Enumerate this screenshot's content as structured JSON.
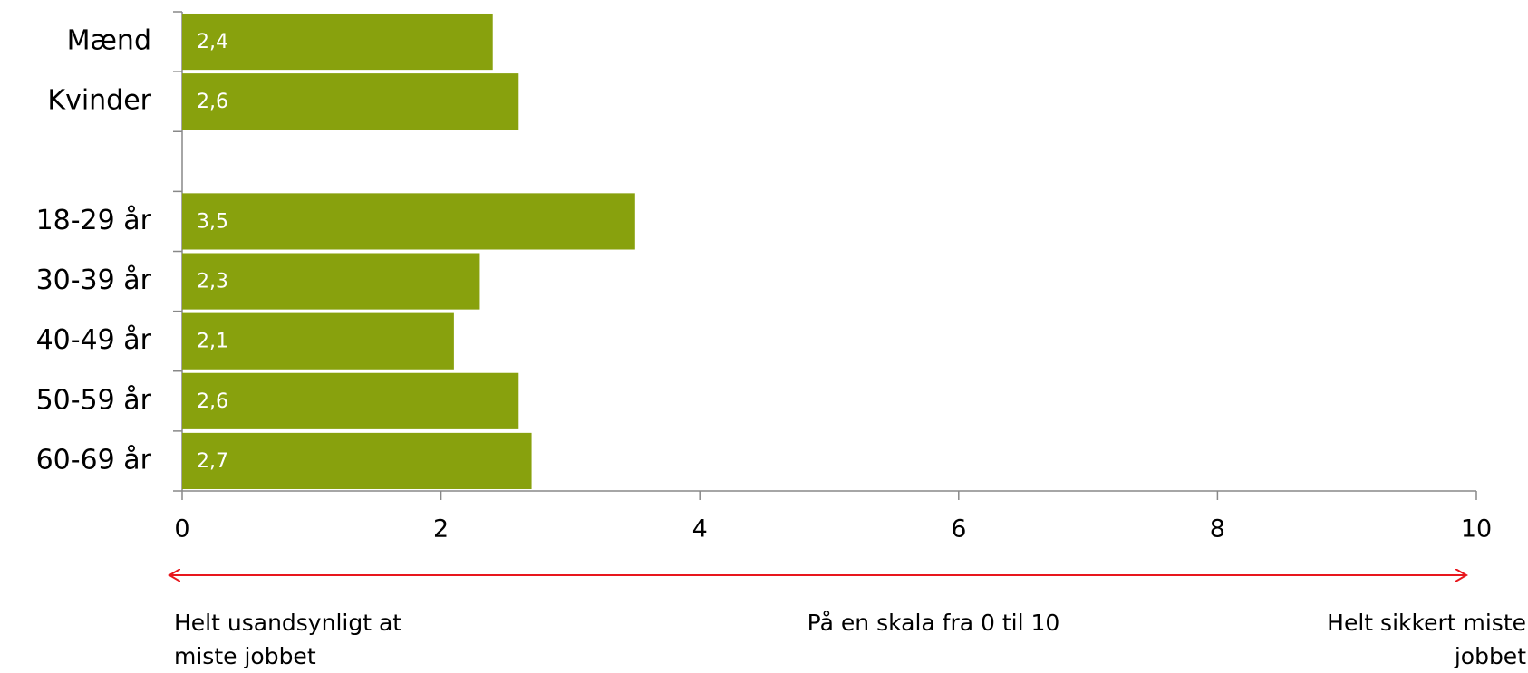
{
  "chart_data": {
    "type": "bar",
    "orientation": "horizontal",
    "categories": [
      "Mænd",
      "Kvinder",
      null,
      "18-29 år",
      "30-39 år",
      "40-49 år",
      "50-59 år",
      "60-69 år"
    ],
    "values": [
      2.4,
      2.6,
      null,
      3.5,
      2.3,
      2.1,
      2.6,
      2.7
    ],
    "value_labels": [
      "2,4",
      "2,6",
      null,
      "3,5",
      "2,3",
      "2,1",
      "2,6",
      "2,7"
    ],
    "color": "#88a10d",
    "xlim": [
      0,
      10
    ],
    "xticks": [
      0,
      2,
      4,
      6,
      8,
      10
    ],
    "annotations": {
      "left": [
        "Helt usandsynligt at",
        "miste jobbet"
      ],
      "center": "På en skala fra 0 til 10",
      "right": [
        "Helt sikkert miste",
        "jobbet"
      ]
    }
  }
}
